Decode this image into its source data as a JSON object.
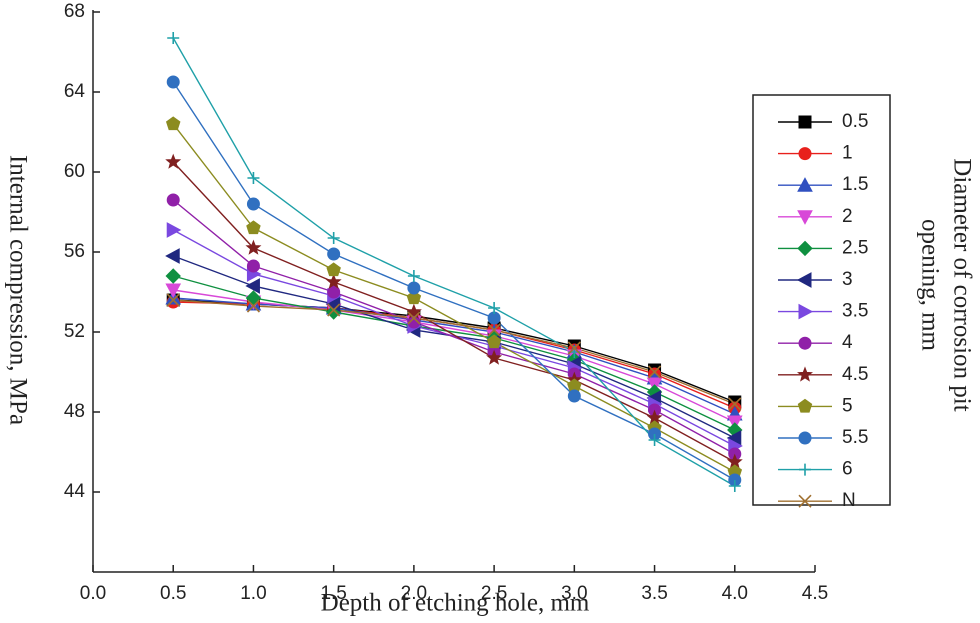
{
  "chart_data": {
    "type": "line",
    "xlabel": "Depth of etching hole, mm",
    "ylabel": "Internal compression, MPa",
    "legend_title": [
      "Diameter of corrosion pit",
      "opening, mm"
    ],
    "x": [
      0.5,
      1.0,
      1.5,
      2.0,
      2.5,
      3.0,
      3.5,
      4.0
    ],
    "xlim": [
      0,
      4.5
    ],
    "xticks": [
      {
        "value": 0,
        "label": "0.0"
      },
      {
        "value": 0.5,
        "label": "0.5"
      },
      {
        "value": 1,
        "label": "1.0"
      },
      {
        "value": 1.5,
        "label": "1.5"
      },
      {
        "value": 2,
        "label": "2.0"
      },
      {
        "value": 2.5,
        "label": "2.5"
      },
      {
        "value": 3,
        "label": "3.0"
      },
      {
        "value": 3.5,
        "label": "3.5"
      },
      {
        "value": 4,
        "label": "4.0"
      },
      {
        "value": 4.5,
        "label": "4.5"
      }
    ],
    "ylim": [
      40,
      68
    ],
    "yticks": [
      44,
      48,
      52,
      56,
      60,
      64,
      68
    ],
    "grid": false,
    "legend": "right",
    "series": [
      {
        "name": "0.5",
        "color": "#000000",
        "marker": "square",
        "values": [
          53.6,
          53.4,
          53.2,
          52.8,
          52.2,
          51.3,
          50.1,
          48.5
        ]
      },
      {
        "name": "1",
        "color": "#e8201c",
        "marker": "circle",
        "values": [
          53.5,
          53.4,
          53.2,
          52.7,
          52.1,
          51.1,
          49.9,
          48.2
        ]
      },
      {
        "name": "1.5",
        "color": "#3050c0",
        "marker": "triangle-up",
        "values": [
          53.7,
          53.4,
          53.2,
          52.6,
          52.0,
          51.0,
          49.7,
          47.9
        ]
      },
      {
        "name": "2",
        "color": "#d848d8",
        "marker": "triangle-down",
        "values": [
          54.1,
          53.5,
          53.1,
          52.5,
          51.8,
          50.8,
          49.4,
          47.5
        ]
      },
      {
        "name": "2.5",
        "color": "#0f9040",
        "marker": "diamond",
        "values": [
          54.8,
          53.7,
          53.0,
          52.3,
          51.7,
          50.6,
          49.0,
          47.1
        ]
      },
      {
        "name": "3",
        "color": "#202880",
        "marker": "triangle-left",
        "values": [
          55.8,
          54.3,
          53.4,
          52.1,
          51.5,
          50.4,
          48.7,
          46.7
        ]
      },
      {
        "name": "3.5",
        "color": "#7a48e0",
        "marker": "triangle-right",
        "values": [
          57.1,
          54.9,
          53.8,
          52.3,
          51.3,
          50.2,
          48.4,
          46.3
        ]
      },
      {
        "name": "4",
        "color": "#9020a8",
        "marker": "circle",
        "values": [
          58.6,
          55.3,
          54.0,
          52.5,
          51.0,
          49.9,
          48.1,
          45.9
        ]
      },
      {
        "name": "4.5",
        "color": "#802020",
        "marker": "star",
        "values": [
          60.5,
          56.2,
          54.5,
          53.0,
          50.7,
          49.6,
          47.7,
          45.5
        ]
      },
      {
        "name": "5",
        "color": "#8c8c20",
        "marker": "pentagon",
        "values": [
          62.4,
          57.2,
          55.1,
          53.7,
          51.5,
          49.3,
          47.2,
          45.0
        ]
      },
      {
        "name": "5.5",
        "color": "#3070c0",
        "marker": "circle",
        "values": [
          64.5,
          58.4,
          55.9,
          54.2,
          52.7,
          48.8,
          46.9,
          44.6
        ]
      },
      {
        "name": "6",
        "color": "#1fa0a8",
        "marker": "plus",
        "values": [
          66.7,
          59.7,
          56.7,
          54.8,
          53.2,
          51.0,
          46.6,
          44.3
        ]
      },
      {
        "name": "N",
        "color": "#a07030",
        "marker": "cross",
        "values": [
          53.6,
          53.3,
          53.1,
          52.7,
          52.1,
          51.2,
          50.0,
          48.4
        ]
      }
    ]
  }
}
